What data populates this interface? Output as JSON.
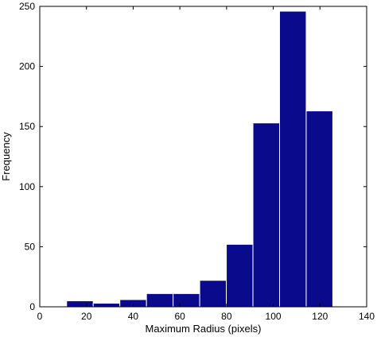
{
  "chart_data": {
    "type": "bar",
    "subtype": "histogram",
    "title": "",
    "xlabel": "Maximum Radius (pixels)",
    "ylabel": "Frequency",
    "xlim": [
      0,
      140
    ],
    "ylim": [
      0,
      250
    ],
    "xticks": [
      0,
      20,
      40,
      60,
      80,
      100,
      120,
      140
    ],
    "yticks": [
      0,
      50,
      100,
      150,
      200,
      250
    ],
    "bins": [
      {
        "x0": 11.5,
        "x1": 22.9,
        "value": 5
      },
      {
        "x0": 22.9,
        "x1": 34.3,
        "value": 3
      },
      {
        "x0": 34.3,
        "x1": 45.7,
        "value": 6
      },
      {
        "x0": 45.7,
        "x1": 57.1,
        "value": 11
      },
      {
        "x0": 57.1,
        "x1": 68.5,
        "value": 11
      },
      {
        "x0": 68.5,
        "x1": 79.9,
        "value": 22
      },
      {
        "x0": 79.9,
        "x1": 91.3,
        "value": 52
      },
      {
        "x0": 91.3,
        "x1": 102.7,
        "value": 153
      },
      {
        "x0": 102.7,
        "x1": 114.1,
        "value": 246
      },
      {
        "x0": 114.1,
        "x1": 125.5,
        "value": 163
      }
    ],
    "bar_color": "#0a0a8c",
    "bar_edge_color": "#ffffff",
    "grid": false,
    "legend": "none"
  }
}
